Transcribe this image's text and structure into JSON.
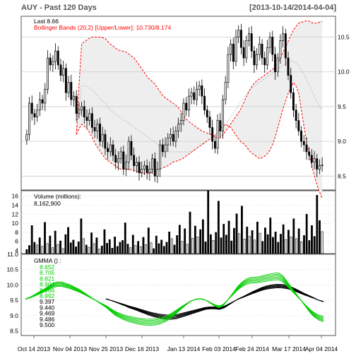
{
  "chart_data": [
    {
      "type": "candlestick",
      "panel": "price",
      "title": "AUY - Past 120 Days",
      "date_range": "[2013-10-14/2014-04-04]",
      "last_label": "Last 8.66",
      "last": 8.66,
      "bbands_label": "Bollinger Bands (20,2) [Upper/Lower]: 10.730/8.174",
      "bbands_upper_last": 10.73,
      "bbands_lower_last": 8.174,
      "y_ticks": [
        8.5,
        9.0,
        9.5,
        10.0,
        10.5
      ],
      "ylim": [
        8.3,
        10.8
      ],
      "close_path": [
        9.1,
        9.55,
        9.4,
        9.35,
        9.45,
        9.6,
        9.55,
        9.75,
        10.2,
        10.1,
        10.15,
        10.3,
        10.1,
        9.95,
        10.05,
        9.7,
        9.85,
        9.6,
        9.65,
        9.4,
        9.45,
        9.5,
        9.35,
        9.3,
        9.4,
        9.2,
        9.15,
        9.25,
        9.0,
        9.1,
        8.9,
        8.85,
        8.95,
        8.8,
        8.7,
        8.75,
        8.85,
        8.6,
        8.7,
        9.0,
        8.8,
        8.65,
        8.7,
        8.55,
        8.6,
        8.65,
        8.55,
        8.6,
        8.75,
        8.5,
        8.6,
        8.95,
        8.85,
        8.95,
        9.05,
        9.1,
        9.0,
        9.15,
        9.25,
        9.3,
        9.55,
        9.45,
        9.65,
        9.7,
        9.6,
        9.75,
        9.8,
        9.65,
        9.45,
        9.35,
        9.2,
        9.0,
        8.9,
        9.3,
        9.15,
        9.6,
        9.85,
        10.25,
        10.4,
        10.15,
        10.5,
        10.6,
        10.35,
        10.2,
        10.45,
        10.55,
        10.3,
        10.1,
        10.25,
        10.4,
        10.2,
        10.1,
        10.35,
        10.5,
        10.25,
        10.0,
        10.2,
        10.45,
        10.55,
        10.2,
        9.95,
        9.7,
        9.45,
        9.3,
        9.15,
        9.0,
        8.95,
        8.85,
        8.8,
        8.7,
        8.75,
        8.6,
        8.65,
        8.66
      ],
      "upper_band_path": [
        9.1,
        10.4,
        10.45,
        10.5,
        10.5,
        10.5,
        10.48,
        10.4,
        10.35,
        10.3,
        10.3,
        10.25,
        10.2,
        10.1,
        10.0,
        9.9,
        9.85,
        9.75,
        9.65,
        9.6,
        9.55,
        9.5,
        9.4,
        9.3,
        9.25,
        9.2,
        9.15,
        9.12,
        9.1,
        9.05,
        9.05,
        9.15,
        9.25,
        9.35,
        9.45,
        9.6,
        9.75,
        9.85,
        9.9,
        9.95,
        10.0,
        10.05,
        10.15,
        10.3,
        10.45,
        10.6,
        10.7,
        10.72,
        10.74,
        10.7,
        10.7,
        10.73
      ],
      "lower_band_path": [
        9.1,
        9.25,
        9.2,
        9.1,
        8.95,
        8.85,
        8.75,
        8.7,
        8.65,
        8.6,
        8.6,
        8.6,
        8.58,
        8.55,
        8.54,
        8.54,
        8.56,
        8.6,
        8.62,
        8.65,
        8.7,
        8.72,
        8.75,
        8.8,
        8.85,
        8.9,
        8.95,
        9.0,
        9.05,
        9.1,
        9.2,
        9.25,
        9.2,
        9.1,
        9.0,
        8.95,
        8.85,
        8.8,
        8.75,
        8.78,
        8.85,
        9.0,
        9.25,
        9.5,
        9.7,
        9.85,
        9.75,
        9.3,
        8.9,
        8.6,
        8.35,
        8.174
      ],
      "mid_band_path": [
        9.1,
        9.8,
        9.8,
        9.75,
        9.7,
        9.6,
        9.55,
        9.45,
        9.4,
        9.35,
        9.3,
        9.25,
        9.2,
        9.15,
        9.1,
        9.05,
        9.0,
        8.95,
        8.9,
        8.85,
        8.85,
        8.85,
        8.85,
        8.85,
        8.85,
        8.9,
        8.95,
        9.0,
        9.05,
        9.1,
        9.15,
        9.25,
        9.35,
        9.45,
        9.55,
        9.65,
        9.75,
        9.8,
        9.85,
        9.9,
        9.95,
        10.0,
        10.05,
        10.1,
        10.15,
        10.15,
        10.1,
        10.0,
        9.85,
        9.7,
        9.55,
        9.45
      ]
    },
    {
      "type": "bar",
      "panel": "volume",
      "label": "Volume (millions):",
      "value_label": "8,162,900",
      "y_ticks": [
        4,
        6,
        8,
        10,
        12,
        14,
        16
      ],
      "ylim": [
        3.3,
        17.2
      ],
      "values": [
        4.2,
        5.1,
        9.5,
        5.8,
        5.2,
        6.8,
        4.9,
        10.2,
        5.5,
        7.2,
        4.6,
        8.3,
        5.3,
        6.1,
        4.4,
        7.5,
        9.1,
        5.7,
        6.3,
        4.8,
        5.9,
        11.0,
        6.6,
        5.2,
        4.7,
        7.9,
        5.5,
        6.8,
        4.3,
        5.0,
        8.6,
        5.6,
        6.4,
        4.5,
        7.0,
        4.9,
        5.8,
        6.2,
        10.1,
        5.4,
        4.6,
        7.4,
        5.1,
        6.0,
        4.8,
        6.9,
        5.3,
        9.0,
        5.7,
        4.4,
        7.2,
        5.5,
        6.3,
        4.9,
        5.8,
        8.1,
        6.6,
        5.2,
        7.3,
        9.6,
        6.0,
        8.8,
        5.4,
        12.5,
        6.7,
        9.4,
        7.0,
        8.6,
        10.8,
        5.9,
        17.2,
        7.5,
        6.2,
        8.0,
        14.9,
        6.8,
        9.8,
        7.4,
        10.5,
        6.1,
        8.9,
        12.1,
        7.7,
        13.8,
        6.5,
        9.2,
        7.1,
        8.4,
        6.3,
        10.3,
        7.8,
        6.0,
        9.0,
        7.5,
        11.2,
        6.9,
        8.1,
        5.8,
        7.6,
        9.7,
        6.4,
        8.5,
        7.0,
        11.0,
        6.6,
        8.8,
        5.9,
        7.3,
        12.0,
        6.2,
        9.5,
        7.1,
        16.2,
        10.6,
        8.16
      ]
    },
    {
      "type": "line",
      "panel": "gmma",
      "label": "GMMA () :",
      "short_values": [
        "8.652",
        "8.705",
        "8.821",
        "8.904",
        "8.966",
        "8.992"
      ],
      "long_values": [
        "9.397",
        "9.440",
        "9.469",
        "9.486",
        "9.500"
      ],
      "y_ticks": [
        8.5,
        9.0,
        9.5,
        10.0,
        10.5,
        11.0
      ],
      "ylim": [
        8.35,
        11.0
      ],
      "short_color": "#00cc00",
      "long_color": "#000000",
      "short_path": [
        9.55,
        9.6,
        9.68,
        9.77,
        9.85,
        9.95,
        10.05,
        10.1,
        10.1,
        10.05,
        10.0,
        9.92,
        9.85,
        9.75,
        9.65,
        9.55,
        9.45,
        9.35,
        9.25,
        9.12,
        9.0,
        8.92,
        8.85,
        8.8,
        8.76,
        8.72,
        8.7,
        8.68,
        8.68,
        8.7,
        8.74,
        8.8,
        8.9,
        9.02,
        9.15,
        9.28,
        9.4,
        9.5,
        9.55,
        9.55,
        9.5,
        9.4,
        9.3,
        9.25,
        9.35,
        9.55,
        9.75,
        9.95,
        10.1,
        10.2,
        10.25,
        10.25,
        10.28,
        10.32,
        10.35,
        10.38,
        10.4,
        10.3,
        10.1,
        9.9,
        9.7,
        9.5,
        9.3,
        9.1,
        8.95,
        8.85,
        8.8
      ],
      "long_path": [
        9.55,
        9.5,
        9.44,
        9.38,
        9.32,
        9.25,
        9.2,
        9.14,
        9.08,
        9.02,
        8.97,
        8.93,
        8.9,
        8.88,
        8.88,
        8.9,
        8.95,
        9.0,
        9.05,
        9.1,
        9.15,
        9.2,
        9.22,
        9.22,
        9.2,
        9.25,
        9.35,
        9.45,
        9.55,
        9.62,
        9.7,
        9.78,
        9.85,
        9.92,
        9.97,
        10.0,
        10.02,
        10.02,
        10.0,
        9.95,
        9.88,
        9.8,
        9.72,
        9.65,
        9.58,
        9.5,
        9.45
      ]
    }
  ],
  "x_axis": {
    "labels": [
      "Oct 14 2013",
      "Nov 04 2013",
      "Nov 25 2013",
      "Dec 16 2013",
      "Jan 13 2014",
      "Feb 03 2014",
      "Feb 24 2014",
      "Mar 17 2014",
      "Apr 04 2014"
    ]
  },
  "colors": {
    "candle_up": "#ffffff",
    "candle_down": "#000000",
    "band_line": "#ff0000",
    "band_fill": "#eeeeee",
    "grid": "#cccccc",
    "header": "#555555",
    "gmma_short": "#00cc00",
    "gmma_long": "#000000"
  }
}
